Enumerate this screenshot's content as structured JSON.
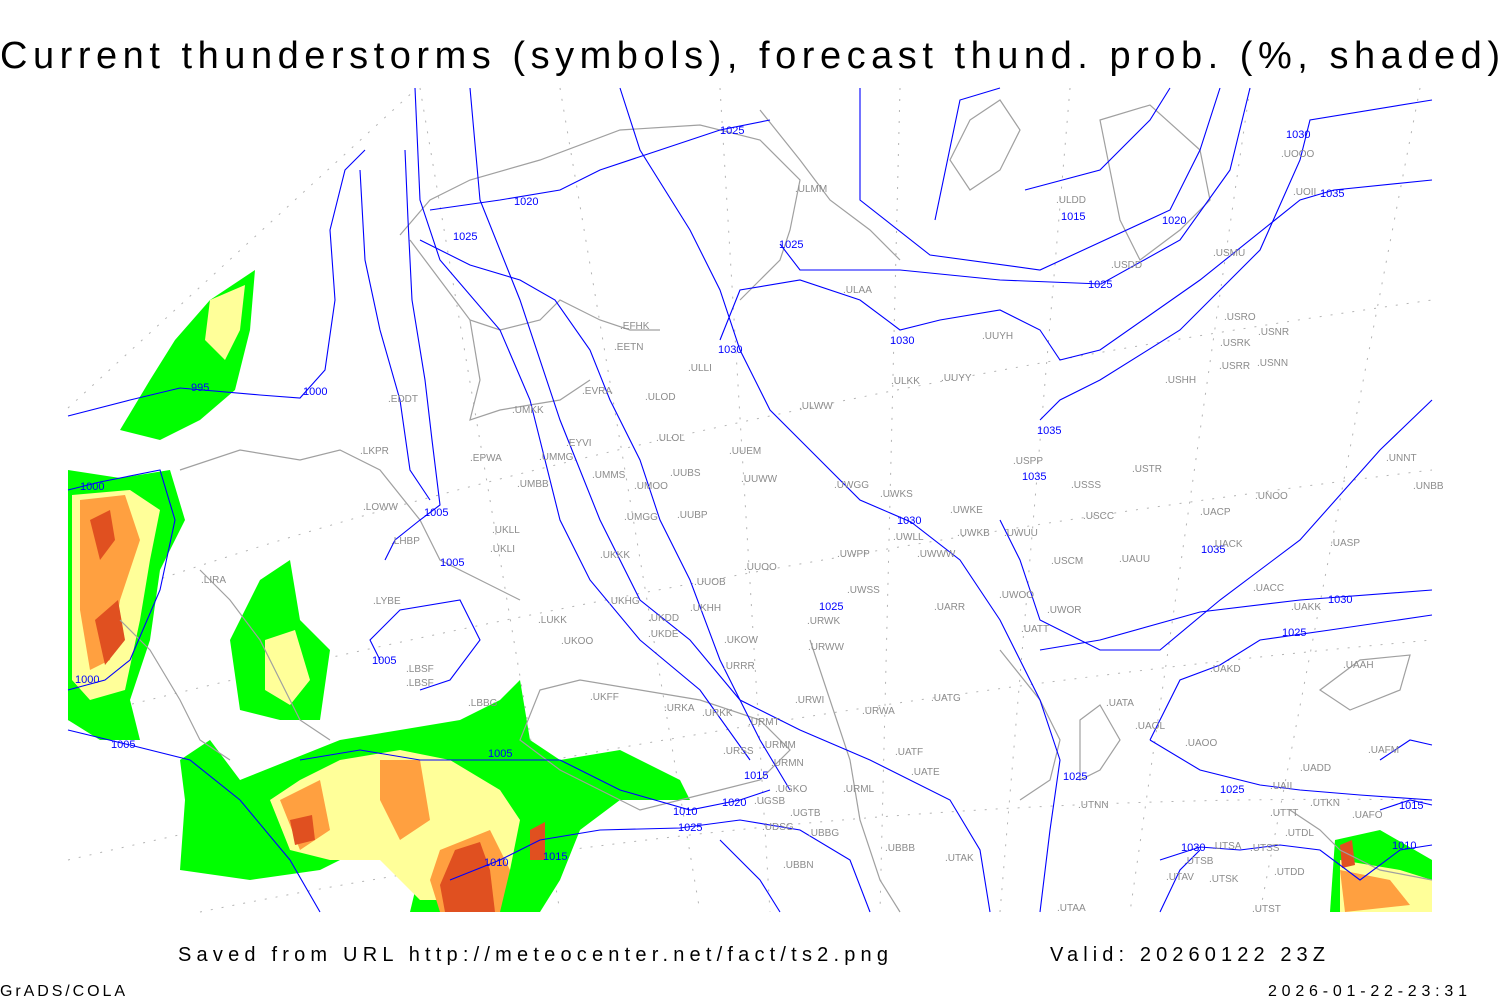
{
  "title": "Current thunderstorms (symbols), forecast thund. prob. (%, shaded)",
  "footer": {
    "source": "Saved from URL http://meteocenter.net/fact/ts2.png",
    "valid": "Valid: 20260122 23Z",
    "software": "GrADS/COLA",
    "timestamp": "2026-01-22-23:31"
  },
  "colors": {
    "isobar": "#0000ff",
    "coastline": "#a0a0a0",
    "prob_low": "#00ff00",
    "prob_mid": "#ffff99",
    "prob_high": "#ffa040",
    "prob_max": "#e05020"
  },
  "isobar_labels": [
    "1025",
    "1020",
    "1025",
    "1025",
    "1015",
    "1020",
    "1025",
    "1030",
    "1035",
    "1030",
    "1030",
    "995",
    "1000",
    "1035",
    "1035",
    "1030",
    "1035",
    "1000",
    "1005",
    "1005",
    "1030",
    "1025",
    "1025",
    "1005",
    "1000",
    "1005",
    "1005",
    "1015",
    "1020",
    "1010",
    "1025",
    "1010",
    "1015",
    "1025",
    "1025",
    "1015",
    "1030",
    "1010"
  ],
  "stations": [
    "EDDT",
    "LKPR",
    "EPWA",
    "UMKK",
    "EVRA",
    "EFHK",
    "EETN",
    "ULLI",
    "ULOD",
    "ULOL",
    "EYVI",
    "UMMG",
    "UMBB",
    "UMMS",
    "UMOO",
    "UUBS",
    "UUEM",
    "UUWW",
    "LOWW",
    "LHBP",
    "UKLL",
    "UKLI",
    "UMGG",
    "UUBP",
    "UKKK",
    "UUOO",
    "UUOB",
    "LYBE",
    "LUKK",
    "UKHG",
    "UKDD",
    "UKHH",
    "UKDE",
    "UKOW",
    "UKOO",
    "LIRA",
    "URRR",
    "LBSF",
    "UKFF",
    "LBBG",
    "URKA",
    "URKK",
    "URWI",
    "URMT",
    "URMM",
    "URMN",
    "URSS",
    "UGKO",
    "UGSB",
    "UGTB",
    "UDSG",
    "UBBG",
    "UBBN",
    "URML",
    "UATF",
    "UATE",
    "UBBB",
    "UTAK",
    "UATG",
    "URWA",
    "URWW",
    "URWK",
    "UWSS",
    "UARR",
    "UWPP",
    "UWWW",
    "UWLL",
    "UWKE",
    "UWKB",
    "UWUU",
    "UWGG",
    "UWKS",
    "ULWW",
    "ULKK",
    "UUYY",
    "UUYH",
    "ULAA",
    "ULMM",
    "ULDD",
    "USDD",
    "USMU",
    "UOOO",
    "UOII",
    "USRO",
    "USRK",
    "USNR",
    "USRR",
    "USNN",
    "USHH",
    "USPP",
    "USSS",
    "USTR",
    "USCC",
    "USCM",
    "UAUU",
    "UACP",
    "UNOO",
    "UACK",
    "UASP",
    "UNNT",
    "UNBB",
    "UACC",
    "UAKK",
    "UWOO",
    "UWOR",
    "UATT",
    "UAKD",
    "UAAH",
    "UATA",
    "UAOL",
    "UAOO",
    "UAFM",
    "UADD",
    "UAII",
    "UTTT",
    "UTKN",
    "UAFO",
    "UTDL",
    "UTSA",
    "UTSS",
    "UTSB",
    "UTAV",
    "UTSK",
    "UTDD",
    "UTNN",
    "UTAA",
    "UTST",
    "LBSF"
  ]
}
